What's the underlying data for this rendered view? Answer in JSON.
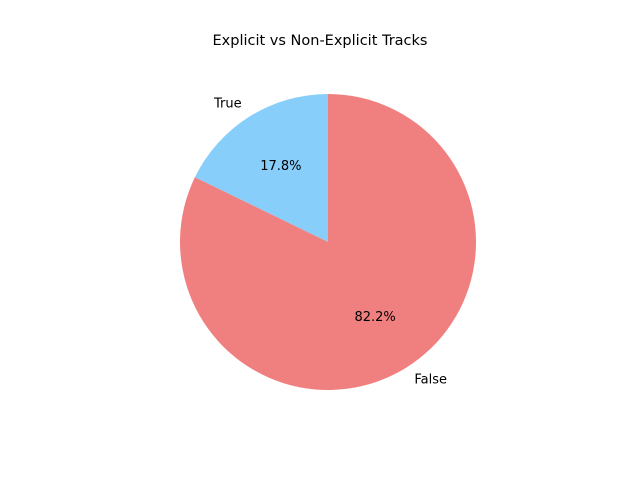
{
  "chart_data": {
    "type": "pie",
    "title": "Explicit vs Non-Explicit Tracks",
    "slices": [
      {
        "label": "True",
        "value": 17.8,
        "pct_label": "17.8%",
        "color": "#87cefa"
      },
      {
        "label": "False",
        "value": 82.2,
        "pct_label": "82.2%",
        "color": "#f08080"
      }
    ],
    "start_angle_deg": 90,
    "direction": "counterclockwise",
    "legend": "none"
  }
}
